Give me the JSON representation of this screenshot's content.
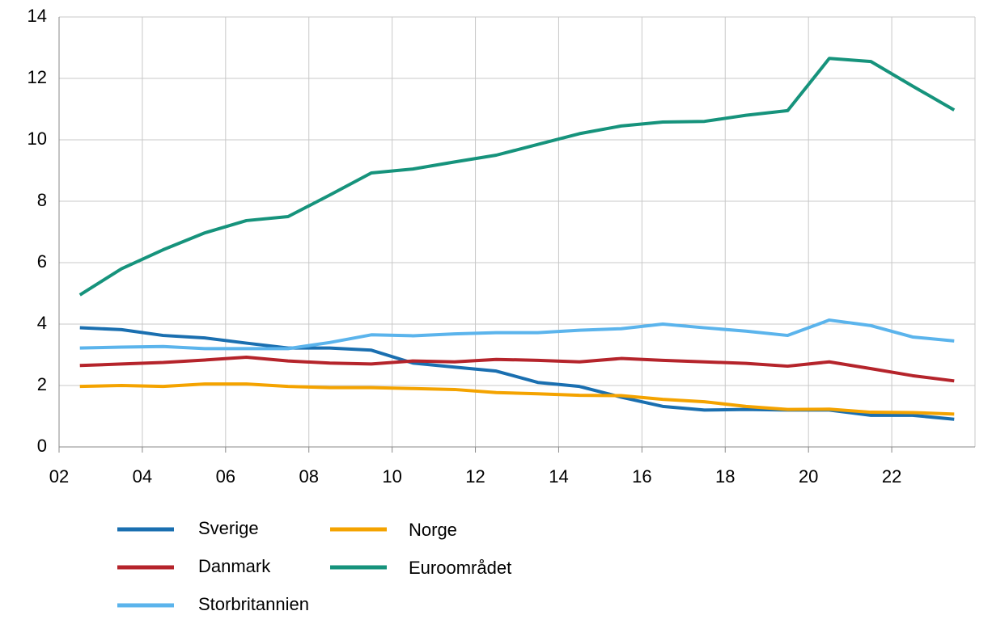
{
  "chart_data": {
    "type": "line",
    "x": [
      2.5,
      3.5,
      4.5,
      5.5,
      6.5,
      7.5,
      8.5,
      9.5,
      10.5,
      11.5,
      12.5,
      13.5,
      14.5,
      15.5,
      16.5,
      17.5,
      18.5,
      19.5,
      20.5,
      21.5,
      22.5,
      23.5
    ],
    "series": [
      {
        "name": "Sverige",
        "color": "#1a6fb0",
        "values": [
          3.88,
          3.82,
          3.63,
          3.55,
          3.38,
          3.22,
          3.22,
          3.15,
          2.73,
          2.6,
          2.47,
          2.1,
          1.97,
          1.62,
          1.32,
          1.2,
          1.22,
          1.2,
          1.2,
          1.03,
          1.03,
          0.9
        ]
      },
      {
        "name": "Danmark",
        "color": "#b5242b",
        "values": [
          2.65,
          2.7,
          2.75,
          2.83,
          2.92,
          2.8,
          2.73,
          2.7,
          2.8,
          2.77,
          2.85,
          2.82,
          2.77,
          2.88,
          2.82,
          2.77,
          2.72,
          2.63,
          2.77,
          2.55,
          2.32,
          2.15
        ]
      },
      {
        "name": "Storbritannien",
        "color": "#5bb4ec",
        "values": [
          3.22,
          3.25,
          3.27,
          3.2,
          3.2,
          3.2,
          3.4,
          3.65,
          3.62,
          3.68,
          3.72,
          3.72,
          3.8,
          3.85,
          4.0,
          3.88,
          3.77,
          3.63,
          4.13,
          3.95,
          3.58,
          3.45
        ]
      },
      {
        "name": "Norge",
        "color": "#f4a300",
        "values": [
          1.97,
          2.0,
          1.97,
          2.05,
          2.05,
          1.97,
          1.93,
          1.93,
          1.9,
          1.87,
          1.77,
          1.73,
          1.68,
          1.67,
          1.55,
          1.47,
          1.32,
          1.22,
          1.23,
          1.13,
          1.12,
          1.07
        ]
      },
      {
        "name": "Euroområdet",
        "color": "#16937c",
        "values": [
          4.95,
          5.8,
          6.42,
          6.97,
          7.37,
          7.5,
          8.2,
          8.92,
          9.05,
          9.28,
          9.5,
          9.85,
          10.2,
          10.45,
          10.58,
          10.6,
          10.8,
          10.95,
          12.65,
          12.55,
          11.75,
          10.97
        ]
      }
    ],
    "xlim": [
      2,
      24
    ],
    "xticks": [
      {
        "value": 2,
        "label": "02"
      },
      {
        "value": 4,
        "label": "04"
      },
      {
        "value": 6,
        "label": "06"
      },
      {
        "value": 8,
        "label": "08"
      },
      10,
      12,
      14,
      16,
      18,
      20,
      22
    ],
    "ylim": [
      0,
      14
    ],
    "yticks": [
      0,
      2,
      4,
      6,
      8,
      10,
      12,
      14
    ],
    "grid": true
  }
}
